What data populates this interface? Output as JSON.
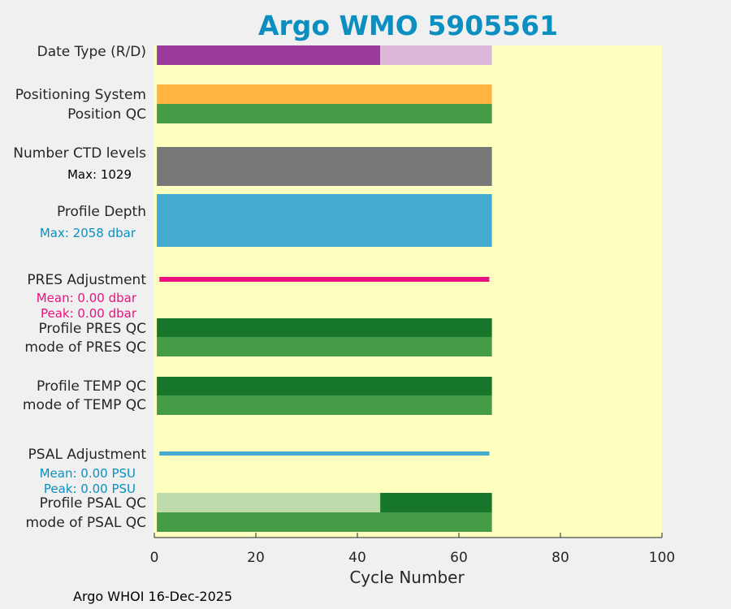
{
  "title": "Argo WMO 5905561",
  "footer": "Argo WHOI 16-Dec-2025",
  "colors": {
    "background": "#ffffc0",
    "purple": "#9b3b9b",
    "light_purple": "#ddb8dd",
    "orange": "#ffb441",
    "green": "#469b46",
    "dark_green": "#167629",
    "light_green": "#bddbab",
    "gray": "#777777",
    "blue": "#44aacf",
    "magenta": "#ea1181",
    "title_blue": "#0a8fc0"
  },
  "chart_data": {
    "type": "bar",
    "xlabel": "Cycle Number",
    "xlim": [
      0,
      100
    ],
    "xticks": [
      0,
      20,
      40,
      60,
      80,
      100
    ],
    "rows": [
      {
        "label": "Date Type (R/D)",
        "segments": [
          {
            "from": 0.5,
            "to": 44.5,
            "color": "#9b3b9b"
          },
          {
            "from": 44.5,
            "to": 66.5,
            "color": "#ddb8dd"
          }
        ]
      },
      {
        "label": "Positioning System",
        "segments": [
          {
            "from": 0.5,
            "to": 66.5,
            "color": "#ffb441"
          }
        ]
      },
      {
        "label": "Position QC",
        "segments": [
          {
            "from": 0.5,
            "to": 66.5,
            "color": "#469b46"
          }
        ]
      },
      {
        "label": "Number CTD levels",
        "note": "Max: 1029",
        "note_color": "#000000",
        "segments": [
          {
            "from": 0.5,
            "to": 66.5,
            "color": "#777777"
          }
        ]
      },
      {
        "label": "Profile Depth",
        "note": "Max: 2058 dbar",
        "note_color": "#0a8fc0",
        "segments": [
          {
            "from": 0.5,
            "to": 66.5,
            "color": "#44aacf"
          }
        ]
      },
      {
        "label": "PRES Adjustment",
        "note": "Mean: 0.00 dbar",
        "note2": "Peak: 0.00 dbar",
        "note_color": "#ea1181",
        "segments": [
          {
            "from": 1,
            "to": 66,
            "color": "#ea1181"
          }
        ]
      },
      {
        "label": "Profile PRES QC",
        "segments": [
          {
            "from": 0.5,
            "to": 66.5,
            "color": "#167629"
          }
        ]
      },
      {
        "label": "mode of PRES QC",
        "segments": [
          {
            "from": 0.5,
            "to": 66.5,
            "color": "#469b46"
          }
        ]
      },
      {
        "label": "Profile TEMP QC",
        "segments": [
          {
            "from": 0.5,
            "to": 66.5,
            "color": "#167629"
          }
        ]
      },
      {
        "label": "mode of TEMP QC",
        "segments": [
          {
            "from": 0.5,
            "to": 66.5,
            "color": "#469b46"
          }
        ]
      },
      {
        "label": "PSAL Adjustment",
        "note": "Mean: 0.00 PSU",
        "note2": "Peak: 0.00 PSU",
        "note_color": "#0a8fc0",
        "segments": [
          {
            "from": 1,
            "to": 66,
            "color": "#44aacf"
          }
        ]
      },
      {
        "label": "Profile PSAL QC",
        "segments": [
          {
            "from": 0.5,
            "to": 44.5,
            "color": "#bddbab"
          },
          {
            "from": 44.5,
            "to": 66.5,
            "color": "#167629"
          }
        ]
      },
      {
        "label": "mode of PSAL QC",
        "segments": [
          {
            "from": 0.5,
            "to": 66.5,
            "color": "#469b46"
          }
        ]
      }
    ]
  }
}
